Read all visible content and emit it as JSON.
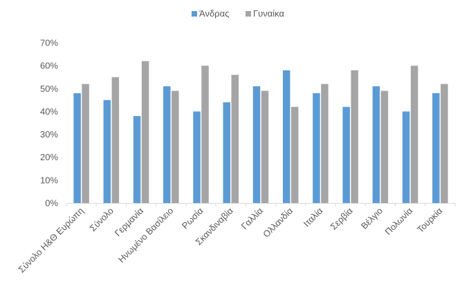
{
  "chart_data": {
    "type": "bar",
    "title": "",
    "xlabel": "",
    "ylabel": "",
    "categories": [
      "Σύνολο Η&Θ Ευρώπη",
      "Σύνολο",
      "Γερμανία",
      "Ηνωμένο Βασίλειο",
      "Ρωσία",
      "Σκανδιναβία",
      "Γαλλία",
      "Ολλανδία",
      "Ιταλία",
      "Σερβία",
      "Βέλγιο",
      "Πολωνία",
      "Τουρκία"
    ],
    "series": [
      {
        "name": "Άνδρας",
        "color": "#5B9BD5",
        "values": [
          48,
          45,
          38,
          51,
          40,
          44,
          51,
          58,
          48,
          42,
          51,
          40,
          48
        ]
      },
      {
        "name": "Γυναίκα",
        "color": "#A5A5A5",
        "values": [
          52,
          55,
          62,
          49,
          60,
          56,
          49,
          42,
          52,
          58,
          49,
          60,
          52
        ]
      }
    ],
    "ylim": [
      0,
      70
    ],
    "yticks": [
      0,
      10,
      20,
      30,
      40,
      50,
      60,
      70
    ],
    "ytick_labels": [
      "0%",
      "10%",
      "20%",
      "30%",
      "40%",
      "50%",
      "60%",
      "70%"
    ],
    "grid": false,
    "legend_position": "top-center"
  }
}
